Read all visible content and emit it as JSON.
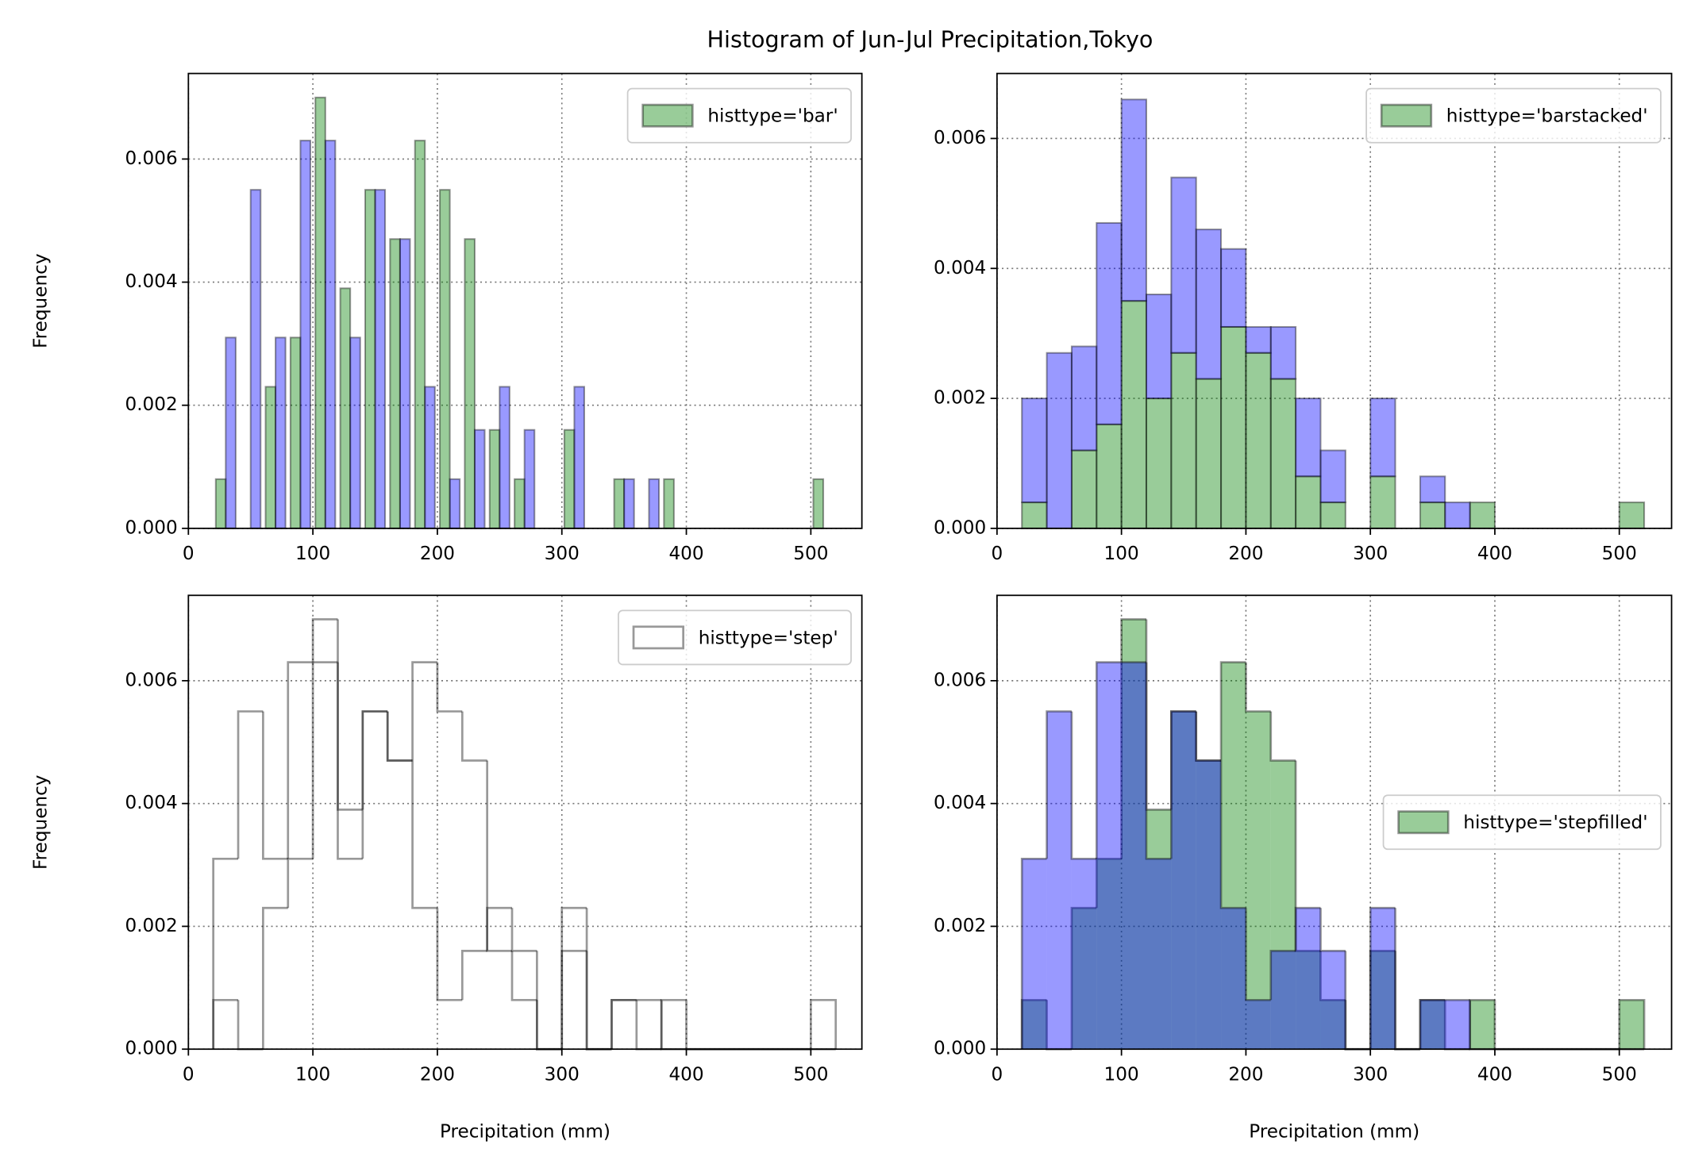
{
  "title": "Histogram of Jun-Jul Precipitation,Tokyo",
  "chart_data": [
    {
      "type": "histogram",
      "histtype": "bar",
      "alpha": 0.4,
      "edgecolor": "black",
      "bins": [
        20,
        40,
        60,
        80,
        100,
        120,
        140,
        160,
        180,
        200,
        220,
        240,
        260,
        280,
        300,
        320,
        340,
        360,
        380,
        400,
        420,
        440,
        460,
        480,
        500,
        520
      ],
      "series": [
        {
          "name": "histtype='bar'",
          "color": "green",
          "values": [
            0.0008,
            0,
            0.0023,
            0.0031,
            0.007,
            0.0039,
            0.0055,
            0.0047,
            0.0063,
            0.0055,
            0.0047,
            0.0016,
            0.0008,
            0,
            0.0016,
            0,
            0.0008,
            0,
            0.0008,
            0,
            0,
            0,
            0,
            0,
            0.0008
          ]
        },
        {
          "color": "blue",
          "values": [
            0.0031,
            0.0055,
            0.0031,
            0.0063,
            0.0063,
            0.0031,
            0.0055,
            0.0047,
            0.0023,
            0.0008,
            0.0016,
            0.0023,
            0.0016,
            0,
            0.0023,
            0,
            0.0008,
            0.0008,
            0,
            0,
            0,
            0,
            0,
            0,
            0
          ]
        }
      ],
      "ylabel": "Frequency",
      "xlim": [
        0,
        541
      ],
      "xticks": [
        0,
        100,
        200,
        300,
        400,
        500
      ],
      "ylim": [
        0,
        0.00739
      ],
      "yticks": [
        {
          "value": 0,
          "label": "0.000"
        },
        0.002,
        0.004,
        0.006
      ],
      "grid": true,
      "legend": "upper right"
    },
    {
      "type": "histogram",
      "histtype": "barstacked",
      "alpha": 0.4,
      "edgecolor": "black",
      "bins": [
        20,
        40,
        60,
        80,
        100,
        120,
        140,
        160,
        180,
        200,
        220,
        240,
        260,
        280,
        300,
        320,
        340,
        360,
        380,
        400,
        420,
        440,
        460,
        480,
        500,
        520
      ],
      "series": [
        {
          "name": "histtype='barstacked'",
          "color": "green",
          "values": [
            0.0004,
            0,
            0.0012,
            0.0016,
            0.0035,
            0.002,
            0.0027,
            0.0023,
            0.0031,
            0.0027,
            0.0023,
            0.0008,
            0.0004,
            0,
            0.0008,
            0,
            0.0004,
            0,
            0.0004,
            0,
            0,
            0,
            0,
            0,
            0.0004
          ]
        },
        {
          "color": "blue",
          "values": [
            0.0016,
            0.0027,
            0.0016,
            0.0031,
            0.0031,
            0.0016,
            0.0027,
            0.0023,
            0.0012,
            0.0004,
            0.0008,
            0.0012,
            0.0008,
            0,
            0.0012,
            0,
            0.0004,
            0.0004,
            0,
            0,
            0,
            0,
            0,
            0,
            0
          ]
        }
      ],
      "xlim": [
        0,
        542
      ],
      "xticks": [
        0,
        100,
        200,
        300,
        400,
        500
      ],
      "ylim": [
        0,
        0.007
      ],
      "yticks": [
        {
          "value": 0,
          "label": "0.000"
        },
        0.002,
        0.004,
        0.006
      ],
      "grid": true,
      "legend": "upper right"
    },
    {
      "type": "histogram",
      "histtype": "step",
      "alpha": 0.4,
      "edgecolor": "black",
      "bins": [
        20,
        40,
        60,
        80,
        100,
        120,
        140,
        160,
        180,
        200,
        220,
        240,
        260,
        280,
        300,
        320,
        340,
        360,
        380,
        400,
        420,
        440,
        460,
        480,
        500,
        520
      ],
      "series": [
        {
          "name": "histtype='step'",
          "color": "green",
          "values": [
            0.0008,
            0,
            0.0023,
            0.0031,
            0.007,
            0.0039,
            0.0055,
            0.0047,
            0.0063,
            0.0055,
            0.0047,
            0.0016,
            0.0008,
            0,
            0.0016,
            0,
            0.0008,
            0,
            0.0008,
            0,
            0,
            0,
            0,
            0,
            0.0008
          ]
        },
        {
          "color": "blue",
          "values": [
            0.0031,
            0.0055,
            0.0031,
            0.0063,
            0.0063,
            0.0031,
            0.0055,
            0.0047,
            0.0023,
            0.0008,
            0.0016,
            0.0023,
            0.0016,
            0,
            0.0023,
            0,
            0.0008,
            0.0008,
            0,
            0,
            0,
            0,
            0,
            0,
            0
          ]
        }
      ],
      "xlabel": "Precipitation (mm)",
      "ylabel": "Frequency",
      "xlim": [
        0,
        541
      ],
      "xticks": [
        0,
        100,
        200,
        300,
        400,
        500
      ],
      "ylim": [
        0,
        0.00739
      ],
      "yticks": [
        {
          "value": 0,
          "label": "0.000"
        },
        0.002,
        0.004,
        0.006
      ],
      "grid": true,
      "legend": "upper right"
    },
    {
      "type": "histogram",
      "histtype": "stepfilled",
      "alpha": 0.4,
      "edgecolor": "black",
      "bins": [
        20,
        40,
        60,
        80,
        100,
        120,
        140,
        160,
        180,
        200,
        220,
        240,
        260,
        280,
        300,
        320,
        340,
        360,
        380,
        400,
        420,
        440,
        460,
        480,
        500,
        520
      ],
      "series": [
        {
          "name": "histtype='stepfilled'",
          "color": "green",
          "values": [
            0.0008,
            0,
            0.0023,
            0.0031,
            0.007,
            0.0039,
            0.0055,
            0.0047,
            0.0063,
            0.0055,
            0.0047,
            0.0016,
            0.0008,
            0,
            0.0016,
            0,
            0.0008,
            0,
            0.0008,
            0,
            0,
            0,
            0,
            0,
            0.0008
          ]
        },
        {
          "color": "blue",
          "values": [
            0.0031,
            0.0055,
            0.0031,
            0.0063,
            0.0063,
            0.0031,
            0.0055,
            0.0047,
            0.0023,
            0.0008,
            0.0016,
            0.0023,
            0.0016,
            0,
            0.0023,
            0,
            0.0008,
            0.0008,
            0,
            0,
            0,
            0,
            0,
            0,
            0
          ]
        }
      ],
      "xlabel": "Precipitation (mm)",
      "xlim": [
        0,
        542
      ],
      "xticks": [
        0,
        100,
        200,
        300,
        400,
        500
      ],
      "ylim": [
        0,
        0.00739
      ],
      "yticks": [
        {
          "value": 0,
          "label": "0.000"
        },
        0.002,
        0.004,
        0.006
      ],
      "grid": true,
      "legend": "center right"
    }
  ]
}
